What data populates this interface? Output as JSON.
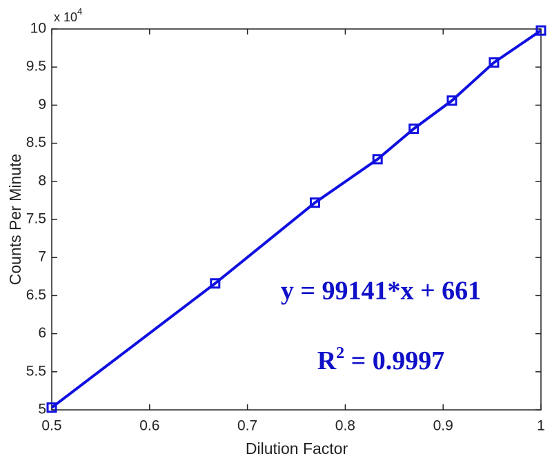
{
  "chart_data": {
    "type": "line",
    "x_label": "Dilution Factor",
    "y_label": "Counts Per Minute",
    "y_multiplier": {
      "base": "x 10",
      "sup": "4"
    },
    "x": [
      0.5,
      0.667,
      0.769,
      0.833,
      0.87,
      0.909,
      0.952,
      1.0
    ],
    "series": [
      {
        "color": "#1010e0",
        "marker": "square",
        "values": [
          5.03,
          6.66,
          7.72,
          8.29,
          8.69,
          9.06,
          9.56,
          9.98
        ]
      }
    ],
    "xlim": [
      0.5,
      1
    ],
    "xticks": [
      0.5,
      0.6,
      0.7,
      0.8,
      0.9,
      1
    ],
    "ylim": [
      5,
      10
    ],
    "yticks": [
      5,
      5.5,
      6,
      6.5,
      7,
      7.5,
      8,
      8.5,
      9,
      9.5,
      10
    ],
    "grid": false,
    "equation": "y = 99141*x + 661",
    "r2": {
      "base": "R",
      "sup": "2",
      "text": " = 0.9997"
    },
    "annotation_color": "#1010c8"
  }
}
